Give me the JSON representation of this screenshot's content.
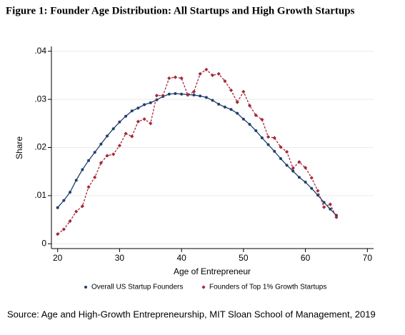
{
  "chart_data": {
    "type": "line",
    "title": "Figure 1: Founder Age Distribution: All Startups and High Growth Startups",
    "x_label": "Age of Entrepreneur",
    "y_label": "Share",
    "source": "Source: Age and High-Growth Entrepreneurship, MIT Sloan School of Management, 2019",
    "x": [
      20,
      21,
      22,
      23,
      24,
      25,
      26,
      27,
      28,
      29,
      30,
      31,
      32,
      33,
      34,
      35,
      36,
      37,
      38,
      39,
      40,
      41,
      42,
      43,
      44,
      45,
      46,
      47,
      48,
      49,
      50,
      51,
      52,
      53,
      54,
      55,
      56,
      57,
      58,
      59,
      60,
      61,
      62,
      63,
      64,
      65
    ],
    "series": [
      {
        "name": "Overall US Startup Founders",
        "color": "#1f3f6e",
        "dashed": false,
        "values": [
          0.0075,
          0.009,
          0.0107,
          0.0132,
          0.0154,
          0.0173,
          0.019,
          0.0207,
          0.0224,
          0.0239,
          0.0253,
          0.0265,
          0.0276,
          0.0282,
          0.0289,
          0.0293,
          0.0299,
          0.0306,
          0.0311,
          0.0312,
          0.0311,
          0.031,
          0.0309,
          0.0307,
          0.0304,
          0.0298,
          0.029,
          0.0284,
          0.0279,
          0.0271,
          0.0259,
          0.0248,
          0.0235,
          0.022,
          0.0206,
          0.0192,
          0.0177,
          0.0163,
          0.0151,
          0.0138,
          0.0128,
          0.0115,
          0.0101,
          0.0086,
          0.0072,
          0.0059
        ]
      },
      {
        "name": "Founders of Top 1% Growth Startups",
        "color": "#a3283a",
        "dashed": true,
        "values": [
          0.002,
          0.003,
          0.0047,
          0.0067,
          0.0078,
          0.0118,
          0.0138,
          0.0168,
          0.0183,
          0.0186,
          0.0204,
          0.0229,
          0.0223,
          0.0254,
          0.0259,
          0.025,
          0.0308,
          0.0308,
          0.0344,
          0.0346,
          0.0344,
          0.0309,
          0.0316,
          0.0353,
          0.0362,
          0.035,
          0.0353,
          0.0338,
          0.0319,
          0.0294,
          0.0316,
          0.0287,
          0.0267,
          0.0258,
          0.0222,
          0.022,
          0.0201,
          0.0191,
          0.0157,
          0.017,
          0.0158,
          0.0137,
          0.011,
          0.0076,
          0.0082,
          0.0055
        ]
      }
    ],
    "xlim": [
      19,
      71
    ],
    "xticks": [
      20,
      30,
      40,
      50,
      60,
      70
    ],
    "ylim": [
      -0.001,
      0.041
    ],
    "yticks": [
      0,
      {
        "value": 0.01,
        "label": ".01"
      },
      {
        "value": 0.02,
        "label": ".02"
      },
      {
        "value": 0.03,
        "label": ".03"
      },
      {
        "value": 0.04,
        "label": ".04"
      }
    ],
    "grid": true
  }
}
